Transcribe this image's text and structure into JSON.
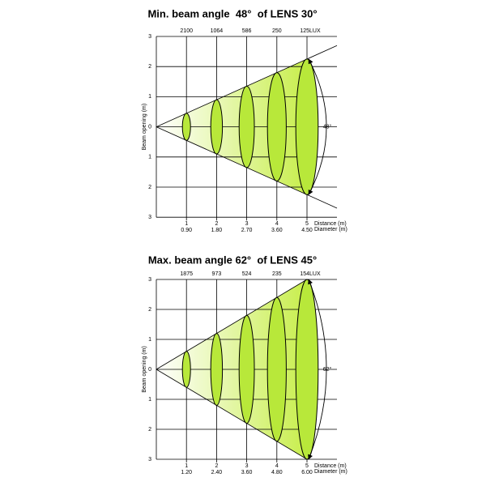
{
  "panels": [
    {
      "title": "Min. beam angle  48°  of LENS 30°",
      "lux": [
        "2100",
        "1064",
        "586",
        "250",
        "125LUX"
      ],
      "y_axis_label": "Beam opening (m)",
      "y_ticks": [
        "3",
        "2",
        "1",
        "0",
        "1",
        "2",
        "3"
      ],
      "distances": [
        "1",
        "2",
        "3",
        "4",
        "5"
      ],
      "diameters": [
        "0.90",
        "1.80",
        "2.70",
        "3.60",
        "4.50"
      ],
      "distance_label": "Distance (m)",
      "diameter_label": "Diameter (m)",
      "angle": "48°"
    },
    {
      "title": "Max. beam angle 62°  of LENS 45°",
      "lux": [
        "1875",
        "973",
        "524",
        "235",
        "154LUX"
      ],
      "y_axis_label": "Beam opening (m)",
      "y_ticks": [
        "3",
        "2",
        "1",
        "0",
        "1",
        "2",
        "3"
      ],
      "distances": [
        "1",
        "2",
        "3",
        "4",
        "5"
      ],
      "diameters": [
        "1.20",
        "2.40",
        "3.60",
        "4.80",
        "6.00"
      ],
      "distance_label": "Distance (m)",
      "diameter_label": "Diameter (m)",
      "angle": "62°"
    }
  ]
}
